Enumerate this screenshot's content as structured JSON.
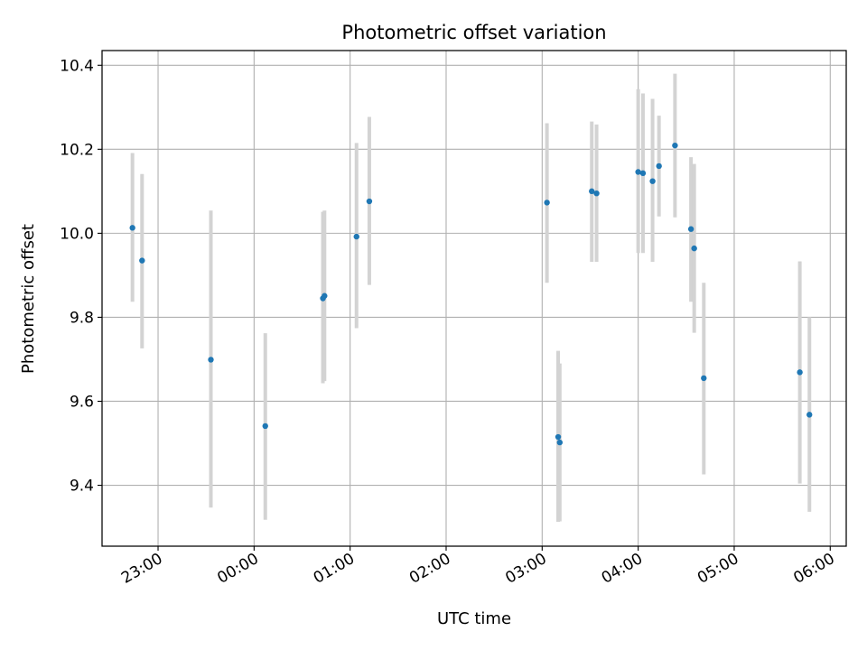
{
  "chart_data": {
    "type": "scatter",
    "title": "Photometric offset variation",
    "xlabel": "UTC time",
    "ylabel": "Photometric offset",
    "x_axis": {
      "kind": "time",
      "reference_date": "2000-01-01",
      "range": [
        "2000-01-01T22:25:00",
        "2000-01-02T06:10:00"
      ],
      "ticks": [
        {
          "t": "2000-01-01T23:00:00",
          "label": "23:00"
        },
        {
          "t": "2000-01-02T00:00:00",
          "label": "00:00"
        },
        {
          "t": "2000-01-02T01:00:00",
          "label": "01:00"
        },
        {
          "t": "2000-01-02T02:00:00",
          "label": "02:00"
        },
        {
          "t": "2000-01-02T03:00:00",
          "label": "03:00"
        },
        {
          "t": "2000-01-02T04:00:00",
          "label": "04:00"
        },
        {
          "t": "2000-01-02T05:00:00",
          "label": "05:00"
        },
        {
          "t": "2000-01-02T06:00:00",
          "label": "06:00"
        }
      ]
    },
    "y_axis": {
      "range": [
        9.255,
        10.435
      ],
      "ticks": [
        {
          "v": 9.4,
          "label": "9.4"
        },
        {
          "v": 9.6,
          "label": "9.6"
        },
        {
          "v": 9.8,
          "label": "9.8"
        },
        {
          "v": 10.0,
          "label": "10.0"
        },
        {
          "v": 10.2,
          "label": "10.2"
        },
        {
          "v": 10.4,
          "label": "10.4"
        }
      ]
    },
    "grid": true,
    "points": [
      {
        "t": "2000-01-01T22:44:00",
        "y": 10.013,
        "lo": 9.837,
        "hi": 10.191
      },
      {
        "t": "2000-01-01T22:50:00",
        "y": 9.935,
        "lo": 9.726,
        "hi": 10.141
      },
      {
        "t": "2000-01-01T23:33:00",
        "y": 9.699,
        "lo": 9.347,
        "hi": 10.054
      },
      {
        "t": "2000-01-02T00:07:00",
        "y": 9.541,
        "lo": 9.318,
        "hi": 9.762
      },
      {
        "t": "2000-01-02T00:43:00",
        "y": 9.845,
        "lo": 9.643,
        "hi": 10.051
      },
      {
        "t": "2000-01-02T00:44:00",
        "y": 9.851,
        "lo": 9.648,
        "hi": 10.054
      },
      {
        "t": "2000-01-02T01:04:00",
        "y": 9.992,
        "lo": 9.774,
        "hi": 10.215
      },
      {
        "t": "2000-01-02T01:12:00",
        "y": 10.076,
        "lo": 9.877,
        "hi": 10.277
      },
      {
        "t": "2000-01-02T03:03:00",
        "y": 10.073,
        "lo": 9.882,
        "hi": 10.262
      },
      {
        "t": "2000-01-02T03:10:00",
        "y": 9.515,
        "lo": 9.313,
        "hi": 9.72
      },
      {
        "t": "2000-01-02T03:11:00",
        "y": 9.502,
        "lo": 9.314,
        "hi": 9.69
      },
      {
        "t": "2000-01-02T03:31:00",
        "y": 10.1,
        "lo": 9.932,
        "hi": 10.266
      },
      {
        "t": "2000-01-02T03:34:00",
        "y": 10.095,
        "lo": 9.932,
        "hi": 10.259
      },
      {
        "t": "2000-01-02T04:00:00",
        "y": 10.146,
        "lo": 9.953,
        "hi": 10.343
      },
      {
        "t": "2000-01-02T04:03:00",
        "y": 10.143,
        "lo": 9.953,
        "hi": 10.333
      },
      {
        "t": "2000-01-02T04:09:00",
        "y": 10.124,
        "lo": 9.932,
        "hi": 10.32
      },
      {
        "t": "2000-01-02T04:13:00",
        "y": 10.16,
        "lo": 10.04,
        "hi": 10.28
      },
      {
        "t": "2000-01-02T04:23:00",
        "y": 10.209,
        "lo": 10.038,
        "hi": 10.38
      },
      {
        "t": "2000-01-02T04:33:00",
        "y": 10.01,
        "lo": 9.837,
        "hi": 10.181
      },
      {
        "t": "2000-01-02T04:35:00",
        "y": 9.964,
        "lo": 9.763,
        "hi": 10.165
      },
      {
        "t": "2000-01-02T04:41:00",
        "y": 9.655,
        "lo": 9.426,
        "hi": 9.882
      },
      {
        "t": "2000-01-02T05:41:00",
        "y": 9.669,
        "lo": 9.404,
        "hi": 9.933
      },
      {
        "t": "2000-01-02T05:47:00",
        "y": 9.568,
        "lo": 9.337,
        "hi": 9.8
      }
    ],
    "colors": {
      "marker": "#1f77b4",
      "errorbar": "#d3d3d3",
      "grid": "#b0b0b0",
      "axes": "#000000"
    }
  }
}
